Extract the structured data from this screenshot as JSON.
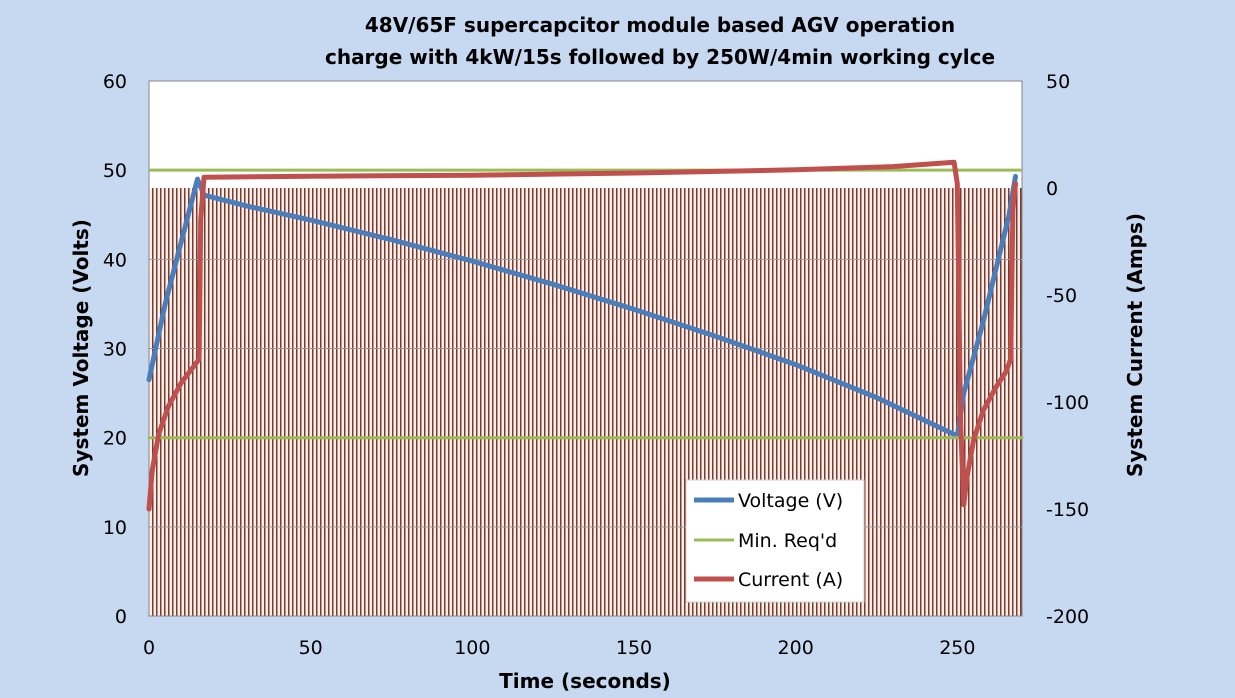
{
  "chart_data": {
    "type": "line",
    "title": "48V/65F supercapcitor module based AGV operation",
    "subtitle": "charge with 4kW/15s followed by 250W/4min working cylce",
    "xlabel": "Time (seconds)",
    "ylabel": "System Voltage (Volts)",
    "y2label": "System Current  (Amps)",
    "xlim": [
      0,
      270
    ],
    "ylim": [
      0,
      60
    ],
    "y2lim": [
      -200,
      50
    ],
    "xticks": [
      "0",
      "50",
      "100",
      "150",
      "200",
      "250"
    ],
    "xtick_values": [
      0,
      50,
      100,
      150,
      200,
      250
    ],
    "yticks": [
      "0",
      "10",
      "20",
      "30",
      "40",
      "50",
      "60"
    ],
    "ytick_values": [
      0,
      10,
      20,
      30,
      40,
      50,
      60
    ],
    "y2ticks": [
      "-200",
      "-150",
      "-100",
      "-50",
      "0",
      "50"
    ],
    "y2tick_values": [
      -200,
      -150,
      -100,
      -50,
      0,
      50
    ],
    "series": [
      {
        "name": "Voltage (V)",
        "axis": "left",
        "color": "#4a7ebb",
        "x": [
          0,
          5,
          10,
          15,
          17,
          30,
          50,
          75,
          100,
          125,
          150,
          175,
          200,
          225,
          250,
          252,
          258,
          262,
          266,
          268
        ],
        "values": [
          26.5,
          35,
          42,
          49,
          47.2,
          46,
          44.4,
          42.2,
          39.8,
          37.2,
          34.4,
          31.4,
          28.2,
          24.5,
          20.2,
          25,
          33,
          39,
          45,
          49.3
        ]
      },
      {
        "name": "Min. Req'd",
        "axis": "left",
        "color": "#9bbb59",
        "x": [
          0,
          270
        ],
        "values": [
          20,
          20
        ]
      },
      {
        "name": "Current (A)",
        "axis": "right",
        "color": "#c0504d",
        "x": [
          0,
          1,
          3,
          6,
          10,
          14,
          15.5,
          16,
          17,
          50,
          100,
          150,
          200,
          230,
          249,
          250,
          251,
          252,
          253,
          255,
          258,
          262,
          265,
          266.5,
          267.2,
          268
        ],
        "values": [
          -150,
          -132,
          -115,
          -102,
          -91,
          -83,
          -80,
          -15,
          5,
          5.5,
          6,
          7,
          8.5,
          10,
          12,
          2,
          -110,
          -148,
          -135,
          -118,
          -104,
          -93,
          -86,
          -80,
          -10,
          2
        ]
      }
    ],
    "reference_lines": [
      {
        "axis": "left",
        "value": 50,
        "color": "#9bbb59"
      }
    ],
    "hatch": {
      "description": "vertical hatch over area below current zero line",
      "color": "#7a3a34",
      "background": "#fdeee6"
    },
    "legend": {
      "position": "bottom-center",
      "entries": [
        {
          "label": "Voltage (V)",
          "color": "#4a7ebb"
        },
        {
          "label": "Min. Req'd",
          "color": "#9bbb59"
        },
        {
          "label": "Current (A)",
          "color": "#c0504d"
        }
      ]
    }
  }
}
